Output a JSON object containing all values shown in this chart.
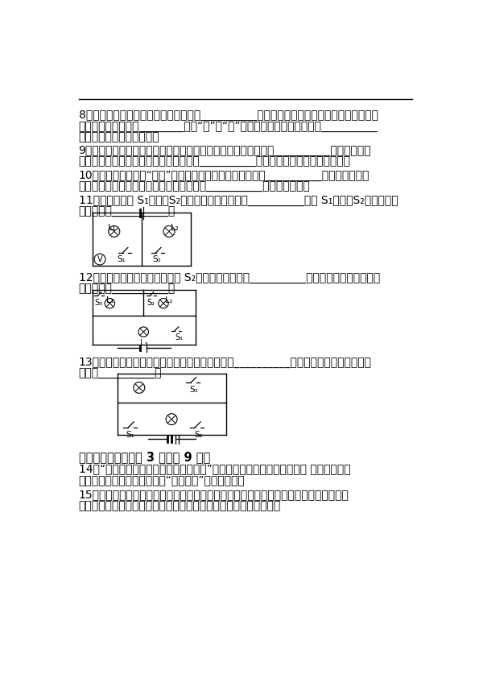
{
  "bg_color": "#ffffff",
  "text_color": "#000000",
  "q8_1": "8．早晨，室外的花草上的小露珠，这是__________现象（填物态变化名称）；寒冷的冬天，",
  "q8_2": "清晨起床哈到窗户的________（填“内”或“外”）表面有白色的冰花，这是__________",
  "q8_3": "现象（填物态变化名称）。",
  "q9_1": "9．改变物体内能的方式有两种：饮料放进冰筱后温度降低，是用__________的方式减少饮",
  "q9_2": "料的内能；在汽油机压缩冲程中，是通过__________的方式增加燃料混合物的内能。",
  "q10_1": "10．我国北方供热的“暖气”用水作介质，这主要是因为水的__________大；用棉球在小",
  "q10_2": "孩的额头上擦些酒精退烧，主要是因为酒精__________时要吸收热量。",
  "q11_1": "11．如图电路中 S₁断开、S₂闭合时，电压表测的是__________；当 S₁闭合、S₂断开时，电",
  "q11_2": "压表测的是__________。",
  "q12_1": "12．如图电路中，当只闭合开关 S₂时，能发光的灯有__________，当开关全部闭合时，能",
  "q12_2": "发光的灯是__________。",
  "q13_1": "13．如图电路中，要使两灯泡串联，应该闭合开关__________；要使两灯泡并联，应该闭",
  "q13_2": "合开关__________。",
  "sec3": "三、简答题：（每题 3 分，共 9 分）",
  "q14_1": "14．“城市尚余三伏热，秋光先到野人家”，说明在陆游那个时代，人们就 已觉察到城市",
  "q14_2": "温度高于郊区。请你分析城市“热岛效应”的主要原因？",
  "q15_1": "15．我国是严重缺水国家，合理利用和保护水资源是每个公民的责任。请你结合生活和生",
  "q15_2": "产实际，提出合理利用和保护水资源的具体措施（要求写出两条）。"
}
